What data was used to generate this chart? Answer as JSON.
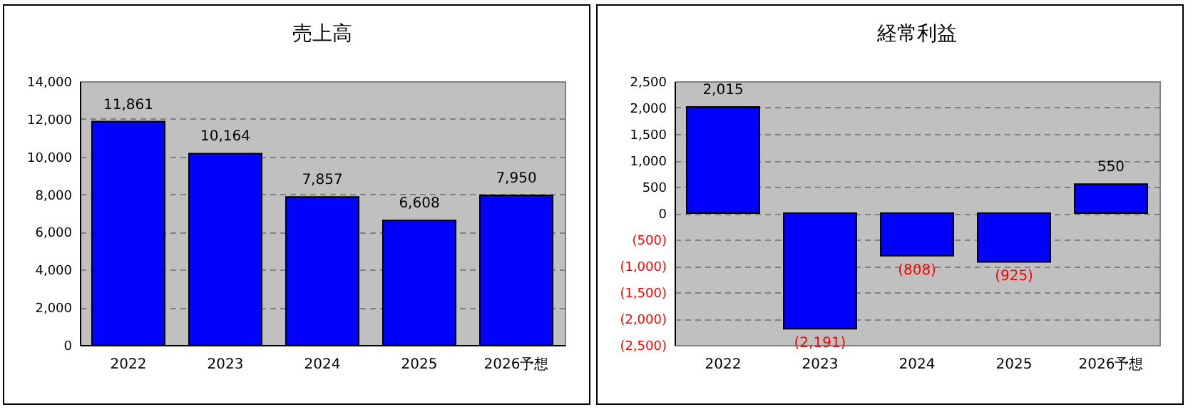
{
  "chart_data": [
    {
      "type": "bar",
      "title": "売上高",
      "categories": [
        "2022",
        "2023",
        "2024",
        "2025",
        "2026予想"
      ],
      "series": [
        {
          "color": "#0000ff",
          "values": [
            11861,
            10164,
            7857,
            6608,
            7950
          ],
          "value_labels": [
            "11,861",
            "10,164",
            "7,857",
            "6,608",
            "7,950"
          ]
        }
      ],
      "ylim": [
        0,
        14000
      ],
      "yticks": [
        {
          "value": 0,
          "label": "0"
        },
        {
          "value": 2000,
          "label": "2,000"
        },
        {
          "value": 4000,
          "label": "4,000"
        },
        {
          "value": 6000,
          "label": "6,000"
        },
        {
          "value": 8000,
          "label": "8,000"
        },
        {
          "value": 10000,
          "label": "10,000"
        },
        {
          "value": 12000,
          "label": "12,000"
        },
        {
          "value": 14000,
          "label": "14,000"
        }
      ],
      "grid": "y"
    },
    {
      "type": "bar",
      "title": "経常利益",
      "categories": [
        "2022",
        "2023",
        "2024",
        "2025",
        "2026予想"
      ],
      "series": [
        {
          "color": "#0000ff",
          "values": [
            2015,
            -2191,
            -808,
            -925,
            550
          ],
          "value_labels": [
            "2,015",
            "(2,191)",
            "(808)",
            "(925)",
            "550"
          ]
        }
      ],
      "ylim": [
        -2500,
        2500
      ],
      "yticks": [
        {
          "value": -2500,
          "label": "(2,500)"
        },
        {
          "value": -2000,
          "label": "(2,000)"
        },
        {
          "value": -1500,
          "label": "(1,500)"
        },
        {
          "value": -1000,
          "label": "(1,000)"
        },
        {
          "value": -500,
          "label": "(500)"
        },
        {
          "value": 0,
          "label": "0"
        },
        500,
        {
          "value": 1000,
          "label": "1,000"
        },
        {
          "value": 1500,
          "label": "1,500"
        },
        {
          "value": 2000,
          "label": "2,000"
        },
        {
          "value": 2500,
          "label": "2,500"
        }
      ],
      "grid": "y"
    }
  ]
}
